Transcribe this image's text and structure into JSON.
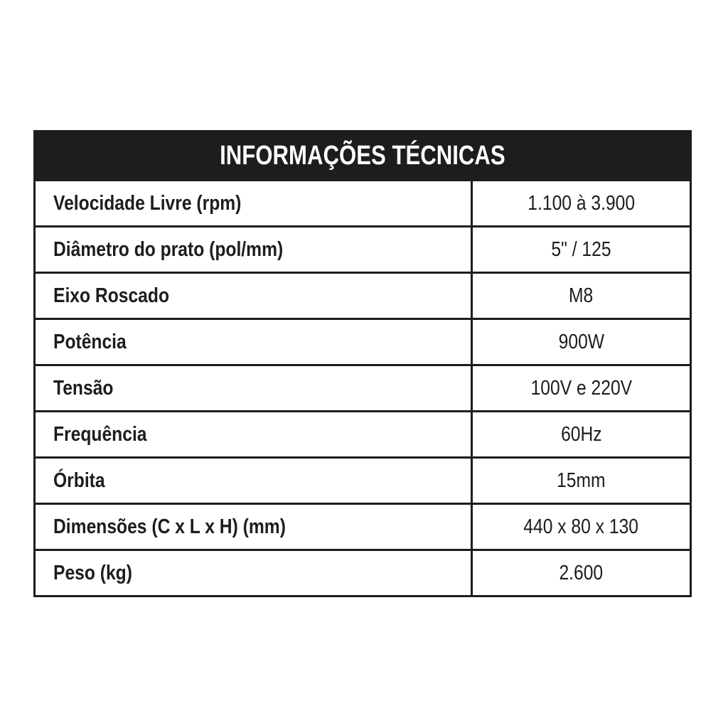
{
  "title": "INFORMAÇÕES TÉCNICAS",
  "rows": [
    {
      "label": "Velocidade Livre (rpm)",
      "value": "1.100 à 3.900"
    },
    {
      "label": "Diâmetro do prato (pol/mm)",
      "value": "5\" / 125"
    },
    {
      "label": "Eixo Roscado",
      "value": "M8"
    },
    {
      "label": "Potência",
      "value": "900W"
    },
    {
      "label": "Tensão",
      "value": "100V e 220V"
    },
    {
      "label": "Frequência",
      "value": "60Hz"
    },
    {
      "label": "Órbita",
      "value": "15mm"
    },
    {
      "label": "Dimensões (C x L x H) (mm)",
      "value": "440 x 80 x 130"
    },
    {
      "label": "Peso (kg)",
      "value": "2.600"
    }
  ]
}
